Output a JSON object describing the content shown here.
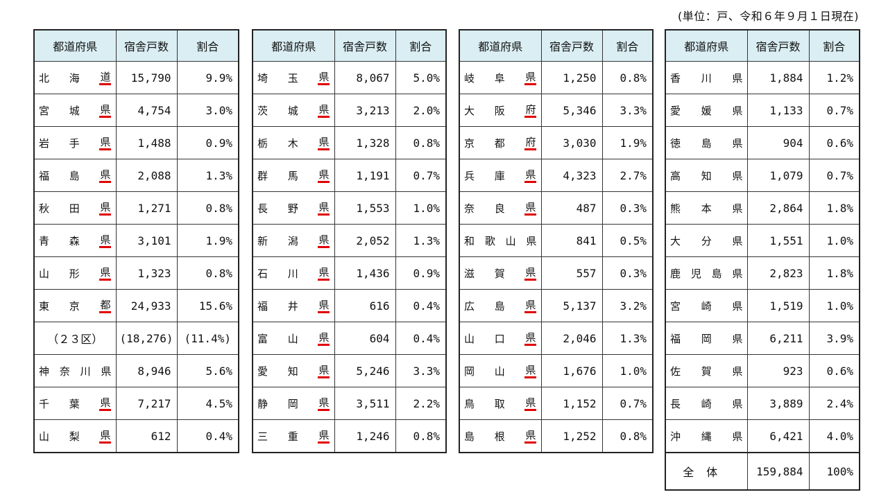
{
  "unit_note": "(単位：戸、令和６年９月１日現在)",
  "headers": [
    "都道府県",
    "宿舎戸数",
    "割合"
  ],
  "accent_color": "#e00000",
  "header_bg": "#daeef3",
  "tables": [
    {
      "rows": [
        {
          "pref": [
            "北",
            "海",
            "道"
          ],
          "ul": true,
          "count": "15,790",
          "pct": "9.9%"
        },
        {
          "pref": [
            "宮",
            "城",
            "県"
          ],
          "ul": true,
          "count": "4,754",
          "pct": "3.0%"
        },
        {
          "pref": [
            "岩",
            "手",
            "県"
          ],
          "ul": true,
          "count": "1,488",
          "pct": "0.9%"
        },
        {
          "pref": [
            "福",
            "島",
            "県"
          ],
          "ul": true,
          "count": "2,088",
          "pct": "1.3%"
        },
        {
          "pref": [
            "秋",
            "田",
            "県"
          ],
          "ul": true,
          "count": "1,271",
          "pct": "0.8%"
        },
        {
          "pref": [
            "青",
            "森",
            "県"
          ],
          "ul": true,
          "count": "3,101",
          "pct": "1.9%"
        },
        {
          "pref": [
            "山",
            "形",
            "県"
          ],
          "ul": true,
          "count": "1,323",
          "pct": "0.8%"
        },
        {
          "pref": [
            "東",
            "京",
            "都"
          ],
          "ul": true,
          "count": "24,933",
          "pct": "15.6%"
        },
        {
          "pref": [
            "（２３区）"
          ],
          "ul": false,
          "count": "(18,276)",
          "pct": "(11.4%)",
          "center": true
        },
        {
          "pref": [
            "神",
            "奈",
            "川",
            "県"
          ],
          "ul": false,
          "count": "8,946",
          "pct": "5.6%"
        },
        {
          "pref": [
            "千",
            "葉",
            "県"
          ],
          "ul": true,
          "count": "7,217",
          "pct": "4.5%"
        },
        {
          "pref": [
            "山",
            "梨",
            "県"
          ],
          "ul": true,
          "count": "612",
          "pct": "0.4%"
        }
      ]
    },
    {
      "rows": [
        {
          "pref": [
            "埼",
            "玉",
            "県"
          ],
          "ul": true,
          "count": "8,067",
          "pct": "5.0%"
        },
        {
          "pref": [
            "茨",
            "城",
            "県"
          ],
          "ul": true,
          "count": "3,213",
          "pct": "2.0%"
        },
        {
          "pref": [
            "栃",
            "木",
            "県"
          ],
          "ul": true,
          "count": "1,328",
          "pct": "0.8%"
        },
        {
          "pref": [
            "群",
            "馬",
            "県"
          ],
          "ul": true,
          "count": "1,191",
          "pct": "0.7%"
        },
        {
          "pref": [
            "長",
            "野",
            "県"
          ],
          "ul": true,
          "count": "1,553",
          "pct": "1.0%"
        },
        {
          "pref": [
            "新",
            "潟",
            "県"
          ],
          "ul": true,
          "count": "2,052",
          "pct": "1.3%"
        },
        {
          "pref": [
            "石",
            "川",
            "県"
          ],
          "ul": true,
          "count": "1,436",
          "pct": "0.9%"
        },
        {
          "pref": [
            "福",
            "井",
            "県"
          ],
          "ul": true,
          "count": "616",
          "pct": "0.4%"
        },
        {
          "pref": [
            "富",
            "山",
            "県"
          ],
          "ul": true,
          "count": "604",
          "pct": "0.4%"
        },
        {
          "pref": [
            "愛",
            "知",
            "県"
          ],
          "ul": true,
          "count": "5,246",
          "pct": "3.3%"
        },
        {
          "pref": [
            "静",
            "岡",
            "県"
          ],
          "ul": true,
          "count": "3,511",
          "pct": "2.2%"
        },
        {
          "pref": [
            "三",
            "重",
            "県"
          ],
          "ul": true,
          "count": "1,246",
          "pct": "0.8%"
        }
      ]
    },
    {
      "rows": [
        {
          "pref": [
            "岐",
            "阜",
            "県"
          ],
          "ul": true,
          "count": "1,250",
          "pct": "0.8%"
        },
        {
          "pref": [
            "大",
            "阪",
            "府"
          ],
          "ul": true,
          "count": "5,346",
          "pct": "3.3%"
        },
        {
          "pref": [
            "京",
            "都",
            "府"
          ],
          "ul": true,
          "count": "3,030",
          "pct": "1.9%"
        },
        {
          "pref": [
            "兵",
            "庫",
            "県"
          ],
          "ul": true,
          "count": "4,323",
          "pct": "2.7%"
        },
        {
          "pref": [
            "奈",
            "良",
            "県"
          ],
          "ul": true,
          "count": "487",
          "pct": "0.3%"
        },
        {
          "pref": [
            "和",
            "歌",
            "山",
            "県"
          ],
          "ul": false,
          "count": "841",
          "pct": "0.5%"
        },
        {
          "pref": [
            "滋",
            "賀",
            "県"
          ],
          "ul": true,
          "count": "557",
          "pct": "0.3%"
        },
        {
          "pref": [
            "広",
            "島",
            "県"
          ],
          "ul": true,
          "count": "5,137",
          "pct": "3.2%"
        },
        {
          "pref": [
            "山",
            "口",
            "県"
          ],
          "ul": true,
          "count": "2,046",
          "pct": "1.3%"
        },
        {
          "pref": [
            "岡",
            "山",
            "県"
          ],
          "ul": true,
          "count": "1,676",
          "pct": "1.0%"
        },
        {
          "pref": [
            "鳥",
            "取",
            "県"
          ],
          "ul": true,
          "count": "1,152",
          "pct": "0.7%"
        },
        {
          "pref": [
            "島",
            "根",
            "県"
          ],
          "ul": true,
          "count": "1,252",
          "pct": "0.8%"
        }
      ]
    },
    {
      "rows": [
        {
          "pref": [
            "香",
            "川",
            "県"
          ],
          "ul": false,
          "count": "1,884",
          "pct": "1.2%"
        },
        {
          "pref": [
            "愛",
            "媛",
            "県"
          ],
          "ul": false,
          "count": "1,133",
          "pct": "0.7%"
        },
        {
          "pref": [
            "徳",
            "島",
            "県"
          ],
          "ul": false,
          "count": "904",
          "pct": "0.6%"
        },
        {
          "pref": [
            "高",
            "知",
            "県"
          ],
          "ul": false,
          "count": "1,079",
          "pct": "0.7%"
        },
        {
          "pref": [
            "熊",
            "本",
            "県"
          ],
          "ul": false,
          "count": "2,864",
          "pct": "1.8%"
        },
        {
          "pref": [
            "大",
            "分",
            "県"
          ],
          "ul": false,
          "count": "1,551",
          "pct": "1.0%"
        },
        {
          "pref": [
            "鹿",
            "児",
            "島",
            "県"
          ],
          "ul": false,
          "count": "2,823",
          "pct": "1.8%"
        },
        {
          "pref": [
            "宮",
            "崎",
            "県"
          ],
          "ul": false,
          "count": "1,519",
          "pct": "1.0%"
        },
        {
          "pref": [
            "福",
            "岡",
            "県"
          ],
          "ul": false,
          "count": "6,211",
          "pct": "3.9%"
        },
        {
          "pref": [
            "佐",
            "賀",
            "県"
          ],
          "ul": false,
          "count": "923",
          "pct": "0.6%"
        },
        {
          "pref": [
            "長",
            "崎",
            "県"
          ],
          "ul": false,
          "count": "3,889",
          "pct": "2.4%"
        },
        {
          "pref": [
            "沖",
            "縄",
            "県"
          ],
          "ul": false,
          "count": "6,421",
          "pct": "4.0%"
        }
      ]
    }
  ],
  "total": {
    "label": "全体",
    "count": "159,884",
    "pct": "100%"
  }
}
